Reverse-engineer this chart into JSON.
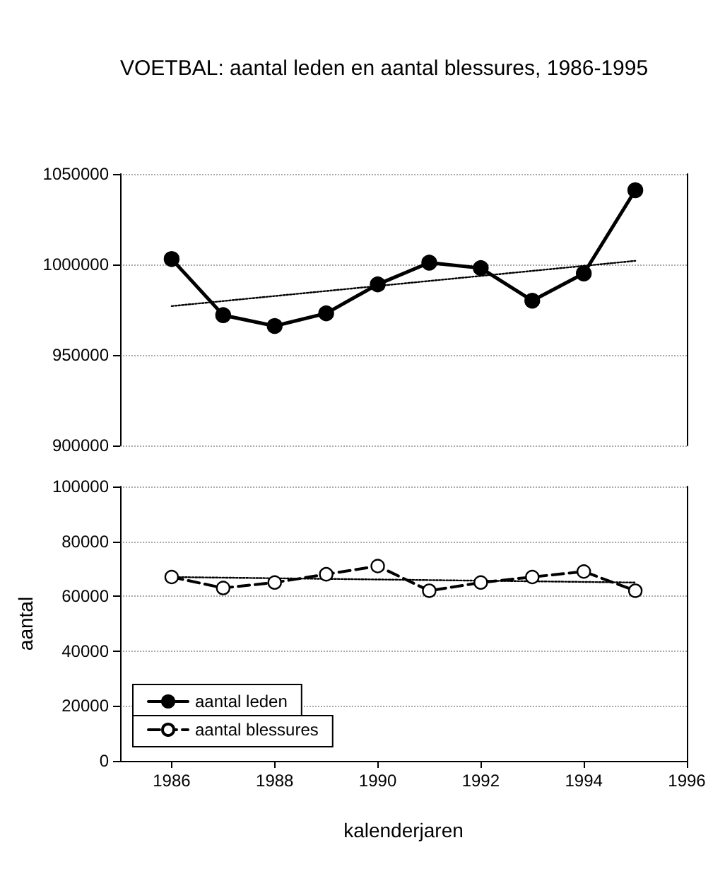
{
  "chart_data": [
    {
      "type": "line",
      "title": "VOETBAL: aantal leden en aantal blessures, 1986-1995",
      "xlim": [
        1985,
        1996
      ],
      "xticks": [
        1986,
        1988,
        1990,
        1992,
        1994,
        1996
      ],
      "ylim": [
        900000,
        1050000
      ],
      "yticks": [
        900000,
        950000,
        1000000,
        1050000
      ],
      "grid": "y",
      "tick_labels": "y",
      "legend": "bottom left",
      "series": [
        {
          "name": "aantal leden",
          "color": "#000000",
          "marker": "circle",
          "line_style": "solid",
          "x": [
            1986,
            1987,
            1988,
            1989,
            1990,
            1991,
            1992,
            1993,
            1994,
            1995
          ],
          "values": [
            1003000,
            972000,
            966000,
            973000,
            989000,
            1001000,
            998000,
            980000,
            995000,
            1041000
          ]
        },
        {
          "color": "#000000",
          "marker": "none",
          "line_style": "dotted",
          "x": [
            1986,
            1995
          ],
          "values": [
            977000,
            1002000
          ]
        }
      ]
    },
    {
      "type": "line",
      "xlabel": "kalenderjaren",
      "ylabel": "aantal",
      "xlim": [
        1985,
        1996
      ],
      "xticks": [
        1986,
        1988,
        1990,
        1992,
        1994,
        1996
      ],
      "ylim": [
        0,
        100000
      ],
      "yticks": [
        0,
        20000,
        40000,
        60000,
        80000,
        100000
      ],
      "grid": "y",
      "legend": "bottom left",
      "series": [
        {
          "name": "aantal blessures",
          "color": "#000000",
          "marker": "circle",
          "line_style": "dashed",
          "x": [
            1986,
            1987,
            1988,
            1989,
            1990,
            1991,
            1992,
            1993,
            1994,
            1995
          ],
          "values": [
            67000,
            63000,
            65000,
            68000,
            71000,
            62000,
            65000,
            67000,
            69000,
            62000
          ]
        },
        {
          "color": "#000000",
          "marker": "none",
          "line_style": "dotted",
          "x": [
            1986,
            1995
          ],
          "values": [
            67000,
            65000
          ]
        }
      ]
    }
  ]
}
